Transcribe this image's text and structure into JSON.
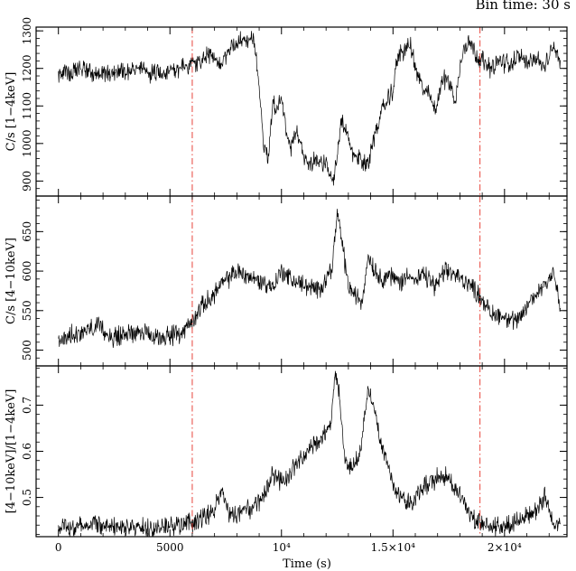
{
  "header": {
    "bin_time": "Bin time: 30 s"
  },
  "chart_data": [
    {
      "type": "line",
      "ylabel": "C/s [1−4keV]",
      "xlim": [
        -1000,
        22800
      ],
      "ylim": [
        860,
        1310
      ],
      "yticks": [
        900,
        1000,
        1100,
        1200,
        1300
      ],
      "ytick_labels": [
        "900",
        "1000",
        "1100",
        "1200",
        "1300"
      ],
      "series": [
        {
          "x": [
            0,
            600,
            1200,
            1800,
            2400,
            3000,
            3600,
            4200,
            4800,
            5400,
            6000,
            6400,
            6800,
            7200,
            7600,
            8000,
            8400,
            8800,
            9000,
            9200,
            9400,
            9600,
            9800,
            10000,
            10200,
            10400,
            10700,
            11000,
            11300,
            11600,
            12000,
            12300,
            12500,
            12700,
            12900,
            13200,
            13500,
            13800,
            14000,
            14300,
            14600,
            15000,
            15200,
            15500,
            15800,
            16000,
            16300,
            16600,
            16900,
            17200,
            17500,
            17800,
            18100,
            18400,
            18700,
            19000,
            19400,
            19800,
            20200,
            20600,
            21000,
            21400,
            21800,
            22200,
            22500
          ],
          "y": [
            1185,
            1190,
            1200,
            1180,
            1190,
            1195,
            1200,
            1185,
            1195,
            1200,
            1210,
            1220,
            1240,
            1200,
            1250,
            1270,
            1280,
            1270,
            1150,
            1000,
            960,
            1110,
            1100,
            1120,
            1040,
            980,
            1030,
            960,
            950,
            960,
            940,
            900,
            960,
            1060,
            1030,
            970,
            960,
            940,
            980,
            1050,
            1100,
            1140,
            1230,
            1250,
            1260,
            1200,
            1150,
            1130,
            1090,
            1170,
            1170,
            1110,
            1240,
            1280,
            1240,
            1220,
            1200,
            1220,
            1210,
            1230,
            1220,
            1230,
            1200,
            1260,
            1220
          ]
        }
      ],
      "vlines": [
        6000,
        18900
      ]
    },
    {
      "type": "line",
      "ylabel": "C/s [4−10keV]",
      "xlim": [
        -1000,
        22800
      ],
      "ylim": [
        480,
        695
      ],
      "yticks": [
        500,
        550,
        600,
        650
      ],
      "ytick_labels": [
        "500",
        "550",
        "600",
        "650"
      ],
      "series": [
        {
          "x": [
            0,
            600,
            1200,
            1800,
            2400,
            3000,
            3600,
            4200,
            4800,
            5400,
            6000,
            6400,
            6800,
            7200,
            7600,
            8000,
            8400,
            8800,
            9200,
            9600,
            10000,
            10400,
            10800,
            11200,
            11600,
            12000,
            12300,
            12500,
            12700,
            13000,
            13300,
            13600,
            13900,
            14200,
            14500,
            14800,
            15100,
            15400,
            15700,
            16000,
            16300,
            16600,
            16900,
            17200,
            17500,
            17800,
            18100,
            18400,
            18700,
            19000,
            19400,
            19800,
            20200,
            20600,
            21000,
            21400,
            21800,
            22200,
            22500
          ],
          "y": [
            510,
            520,
            525,
            530,
            515,
            520,
            525,
            515,
            518,
            520,
            535,
            555,
            565,
            580,
            590,
            600,
            595,
            590,
            585,
            580,
            600,
            590,
            585,
            580,
            575,
            590,
            610,
            675,
            640,
            580,
            570,
            560,
            620,
            600,
            590,
            595,
            590,
            585,
            600,
            585,
            595,
            590,
            580,
            595,
            600,
            595,
            590,
            585,
            575,
            565,
            545,
            545,
            540,
            535,
            555,
            570,
            585,
            600,
            550
          ]
        }
      ],
      "vlines": [
        6000,
        18900
      ]
    },
    {
      "type": "line",
      "ylabel": "[4−10keV]/[1−4keV]",
      "xlim": [
        -1000,
        22800
      ],
      "ylim": [
        0.415,
        0.785
      ],
      "yticks": [
        0.5,
        0.6,
        0.7
      ],
      "ytick_labels": [
        "0.5",
        "0.6",
        "0.7"
      ],
      "xticks": [
        0,
        5000,
        10000,
        15000,
        20000
      ],
      "xtick_labels": [
        "0",
        "5000",
        "10⁴",
        "1.5×10⁴",
        "2×10⁴"
      ],
      "xlabel": "Time (s)",
      "series": [
        {
          "x": [
            0,
            600,
            1200,
            1800,
            2400,
            3000,
            3600,
            4200,
            4800,
            5400,
            6000,
            6500,
            7000,
            7300,
            7600,
            8000,
            8400,
            8800,
            9200,
            9600,
            10000,
            10400,
            10800,
            11200,
            11600,
            12000,
            12200,
            12400,
            12600,
            12800,
            13000,
            13300,
            13600,
            13900,
            14200,
            14500,
            14800,
            15100,
            15400,
            15700,
            16000,
            16300,
            16600,
            16900,
            17200,
            17500,
            17800,
            18100,
            18400,
            18700,
            19000,
            19400,
            19800,
            20200,
            20600,
            21000,
            21400,
            21800,
            22200,
            22500
          ],
          "y": [
            0.43,
            0.435,
            0.44,
            0.445,
            0.44,
            0.435,
            0.435,
            0.43,
            0.435,
            0.44,
            0.445,
            0.455,
            0.47,
            0.52,
            0.47,
            0.46,
            0.47,
            0.48,
            0.5,
            0.55,
            0.53,
            0.55,
            0.58,
            0.6,
            0.62,
            0.64,
            0.66,
            0.77,
            0.72,
            0.6,
            0.56,
            0.57,
            0.62,
            0.74,
            0.68,
            0.62,
            0.56,
            0.52,
            0.5,
            0.49,
            0.5,
            0.52,
            0.53,
            0.54,
            0.55,
            0.54,
            0.52,
            0.5,
            0.47,
            0.45,
            0.44,
            0.435,
            0.44,
            0.44,
            0.45,
            0.46,
            0.47,
            0.5,
            0.45,
            0.44
          ]
        }
      ],
      "vlines": [
        6000,
        18900
      ]
    }
  ],
  "style": {
    "series_color": "#000000",
    "vline_color": "#e8453c"
  }
}
